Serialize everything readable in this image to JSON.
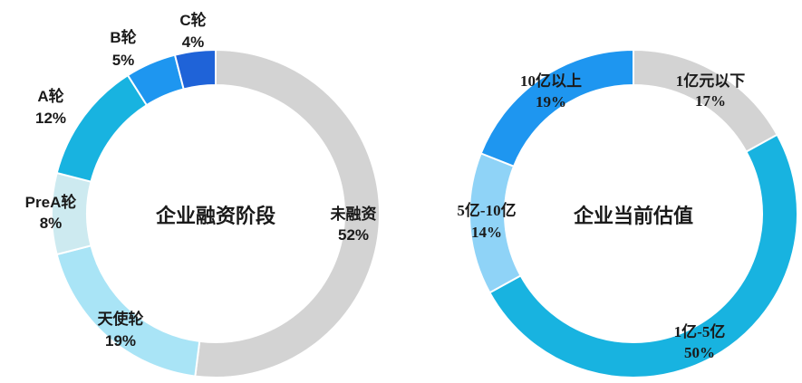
{
  "chart_data": [
    {
      "type": "pie",
      "title": "企业融资阶段",
      "categories": [
        "未融资",
        "天使轮",
        "PreA轮",
        "A轮",
        "B轮",
        "C轮"
      ],
      "values": [
        52,
        19,
        8,
        12,
        5,
        4
      ],
      "value_labels": [
        "52%",
        "19%",
        "8%",
        "12%",
        "5%",
        "4%"
      ],
      "colors": [
        "#d3d3d3",
        "#a9e4f6",
        "#cdeaf0",
        "#18b3e0",
        "#1e96f0",
        "#1f63d8"
      ]
    },
    {
      "type": "pie",
      "title": "企业当前估值",
      "categories": [
        "1亿元以下",
        "1亿-5亿",
        "5亿-10亿",
        "10亿以上"
      ],
      "values": [
        17,
        50,
        14,
        19
      ],
      "value_labels": [
        "17%",
        "50%",
        "14%",
        "19%"
      ],
      "colors": [
        "#d3d3d3",
        "#18b3e0",
        "#8fd3f7",
        "#1e96f0"
      ]
    }
  ]
}
